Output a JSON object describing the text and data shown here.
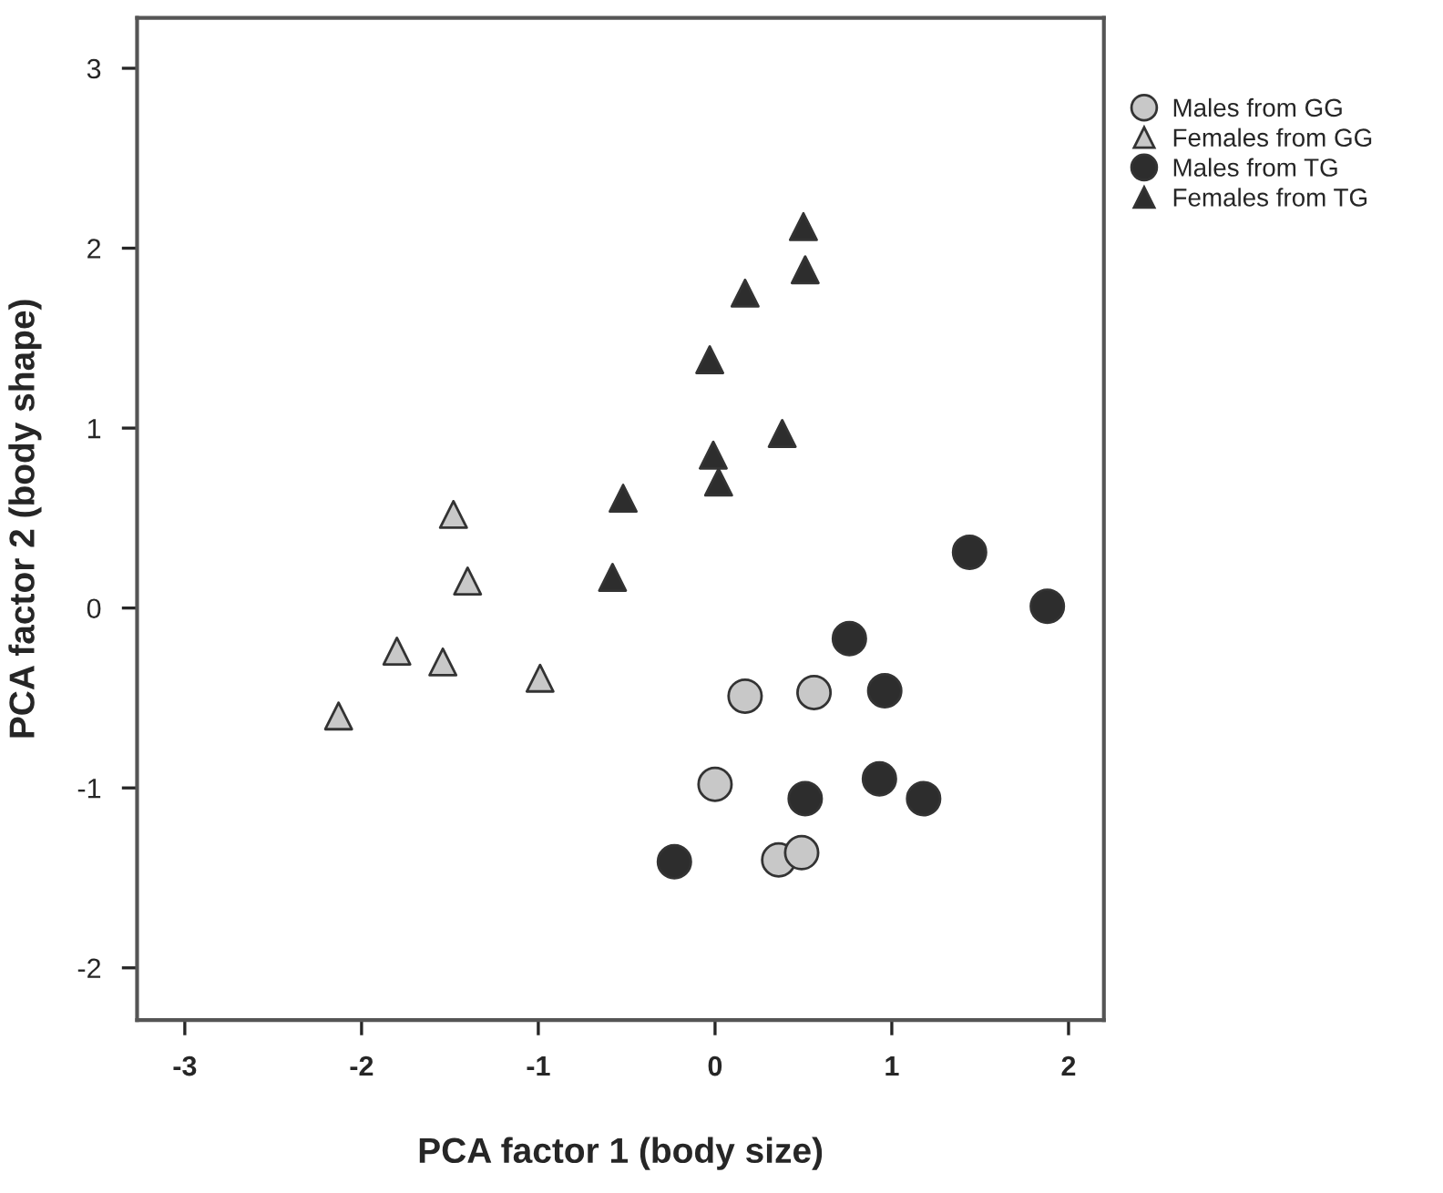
{
  "chart_data": {
    "type": "scatter",
    "xlabel": "PCA factor 1 (body size)",
    "ylabel": "PCA factor 2 (body shape)",
    "xlim": [
      -3.27,
      2.2
    ],
    "ylim": [
      -2.29,
      3.28
    ],
    "xticks": [
      -3,
      -2,
      -1,
      0,
      1,
      2
    ],
    "yticks": [
      3,
      2,
      1,
      0,
      -1,
      -2
    ],
    "grid": false,
    "legend": "top right",
    "series": [
      {
        "name": "Males from GG",
        "color": "#c8c8c8",
        "marker": "circle",
        "x": [
          0.17,
          0.56,
          0.0,
          0.36,
          0.49
        ],
        "values": [
          -0.49,
          -0.47,
          -0.98,
          -1.4,
          -1.36
        ]
      },
      {
        "name": "Females from GG",
        "color": "#c8c8c8",
        "marker": "triangle",
        "x": [
          -2.13,
          -1.8,
          -1.54,
          -0.99,
          -1.4,
          -1.48
        ],
        "values": [
          -0.6,
          -0.24,
          -0.3,
          -0.39,
          0.15,
          0.52
        ]
      },
      {
        "name": "Males from TG",
        "color": "#2d2d2d",
        "marker": "circle",
        "x": [
          1.44,
          1.88,
          0.76,
          0.96,
          0.93,
          0.51,
          1.18,
          -0.23
        ],
        "values": [
          0.31,
          0.01,
          -0.17,
          -0.46,
          -0.95,
          -1.06,
          -1.06,
          -1.41
        ]
      },
      {
        "name": "Females from TG",
        "color": "#2d2d2d",
        "marker": "triangle",
        "x": [
          -0.58,
          -0.52,
          0.02,
          -0.01,
          0.38,
          -0.03,
          0.17,
          0.51,
          0.5
        ],
        "values": [
          0.17,
          0.61,
          0.7,
          0.85,
          0.97,
          1.38,
          1.75,
          1.88,
          2.12
        ]
      }
    ]
  }
}
